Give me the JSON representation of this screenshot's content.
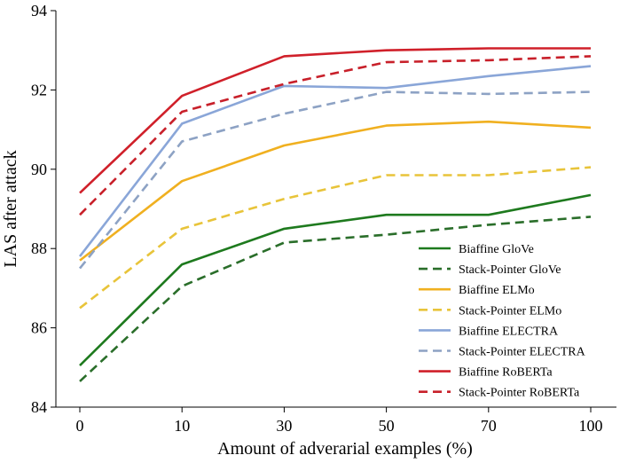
{
  "chart_data": {
    "type": "line",
    "title": "",
    "xlabel": "Amount of adverarial examples (%)",
    "ylabel": "LAS after attack",
    "categories": [
      "0",
      "10",
      "30",
      "50",
      "70",
      "100"
    ],
    "ylim": [
      84,
      94
    ],
    "yticks": [
      "84",
      "86",
      "88",
      "90",
      "92",
      "94"
    ],
    "grid": false,
    "legend_position": "bottom-right",
    "series": [
      {
        "name": "Biaffine GloVe",
        "color": "#1e7a1e",
        "dash": "solid",
        "values": [
          85.05,
          87.6,
          88.5,
          88.85,
          88.85,
          89.35
        ]
      },
      {
        "name": "Stack-Pointer GloVe",
        "color": "#2a6e2a",
        "dash": "dashed",
        "values": [
          84.65,
          87.05,
          88.15,
          88.35,
          88.6,
          88.8
        ]
      },
      {
        "name": "Biaffine ELMo",
        "color": "#f0b020",
        "dash": "solid",
        "values": [
          87.7,
          89.7,
          90.6,
          91.1,
          91.2,
          91.05
        ]
      },
      {
        "name": "Stack-Pointer ELMo",
        "color": "#e8c43a",
        "dash": "dashed",
        "values": [
          86.5,
          88.5,
          89.25,
          89.85,
          89.85,
          90.05
        ]
      },
      {
        "name": "Biaffine ELECTRA",
        "color": "#8aa6d8",
        "dash": "solid",
        "values": [
          87.8,
          91.15,
          92.1,
          92.05,
          92.35,
          92.6
        ]
      },
      {
        "name": "Stack-Pointer ELECTRA",
        "color": "#8da2c4",
        "dash": "dashed",
        "values": [
          87.5,
          90.7,
          91.4,
          91.95,
          91.9,
          91.95
        ]
      },
      {
        "name": "Biaffine RoBERTa",
        "color": "#d0202a",
        "dash": "solid",
        "values": [
          89.4,
          91.85,
          92.85,
          93.0,
          93.05,
          93.05
        ]
      },
      {
        "name": "Stack-Pointer RoBERTa",
        "color": "#c8202a",
        "dash": "dashed",
        "values": [
          88.85,
          91.45,
          92.15,
          92.7,
          92.75,
          92.85
        ]
      }
    ]
  }
}
